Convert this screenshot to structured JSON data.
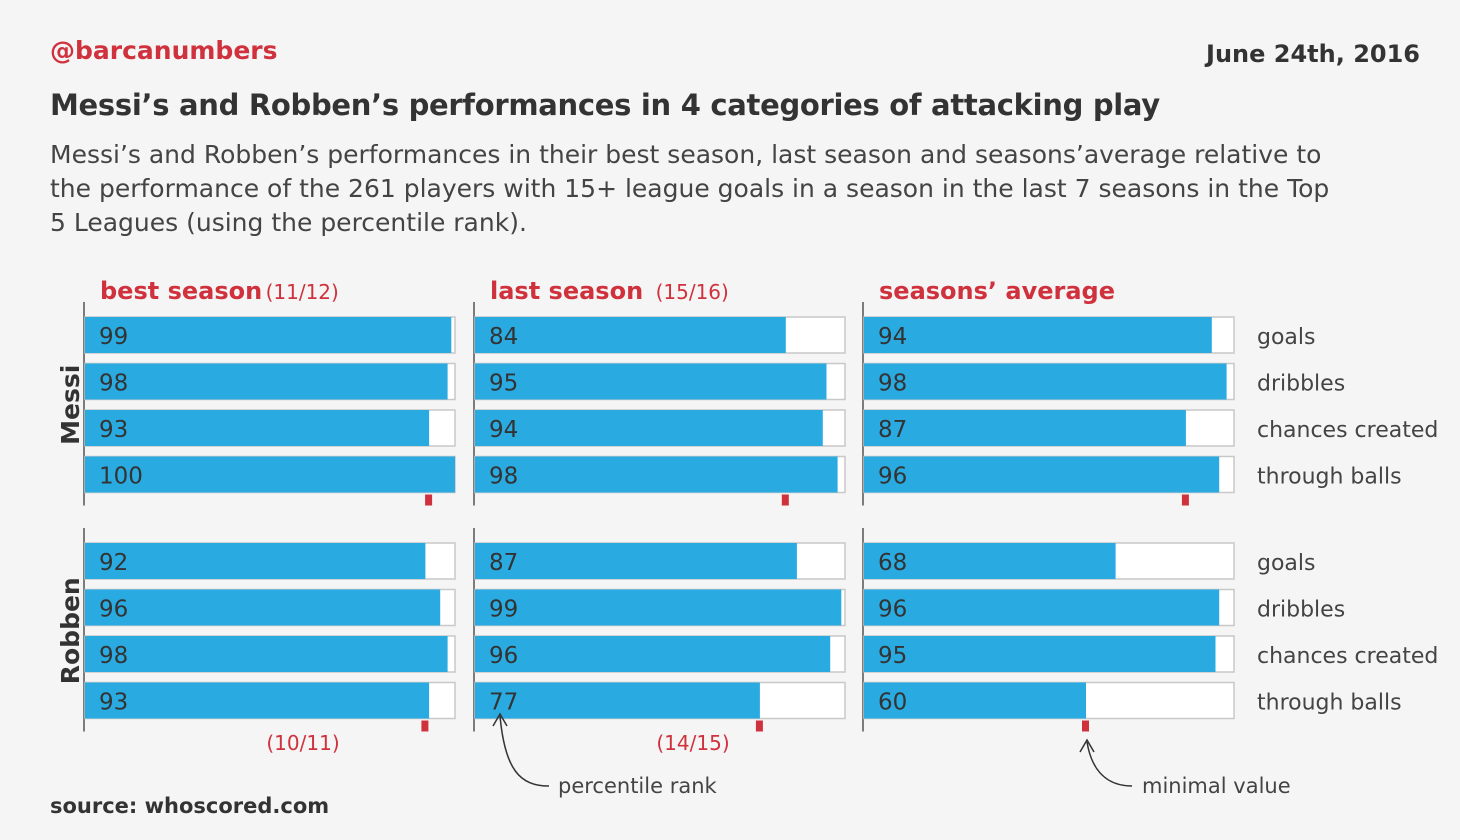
{
  "header": {
    "handle": "@barcanumbers",
    "date": "June 24th, 2016",
    "title": "Messi’s and Robben’s performances in 4 categories of attacking play",
    "subtitle": "Messi’s and Robben’s performances in their best season, last season and seasons’average relative to the performance of the 261 players with 15+ league goals in a season in the last 7 seasons in the Top 5 Leagues (using the percentile rank)."
  },
  "footer": {
    "source": "source: whoscored.com"
  },
  "colors": {
    "bar": "#29abe2",
    "accent": "#d0323d",
    "frame": "#c8c8c8",
    "text": "#333333"
  },
  "chart_data": {
    "type": "bar",
    "orientation": "horizontal",
    "xlim": [
      0,
      100
    ],
    "columns": [
      {
        "title": "best season",
        "season_label": "(11/12)"
      },
      {
        "title": "last season",
        "season_label": "(15/16)"
      },
      {
        "title": "seasons’ average",
        "season_label": ""
      }
    ],
    "categories": [
      "goals",
      "dribbles",
      "chances created",
      "through balls"
    ],
    "players": [
      {
        "name": "Messi",
        "footnotes": [
          "",
          "",
          ""
        ],
        "values": [
          [
            99,
            98,
            93,
            100
          ],
          [
            84,
            95,
            94,
            98
          ],
          [
            94,
            98,
            87,
            96
          ]
        ],
        "minimal_value_marker": [
          93,
          84,
          87
        ]
      },
      {
        "name": "Robben",
        "footnotes": [
          "(10/11)",
          "(14/15)",
          ""
        ],
        "values": [
          [
            92,
            96,
            98,
            93
          ],
          [
            87,
            99,
            96,
            77
          ],
          [
            68,
            96,
            95,
            60
          ]
        ],
        "minimal_value_marker": [
          92,
          77,
          60
        ]
      }
    ],
    "annotations": {
      "percentile_rank": "percentile rank",
      "minimal_value": "minimal value"
    }
  }
}
